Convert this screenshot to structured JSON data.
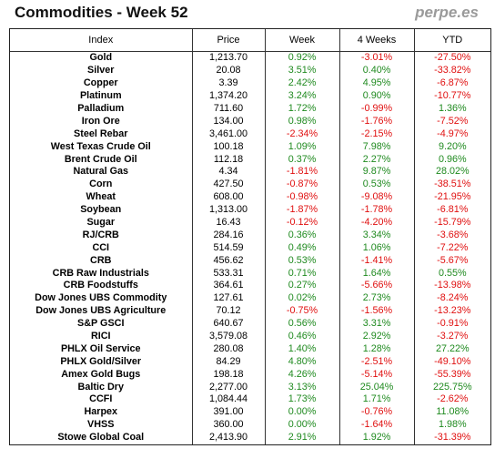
{
  "header": {
    "title": "Commodities - Week 52",
    "source": "perpe.es"
  },
  "colors": {
    "positive": "#1f8a1f",
    "negative": "#e01010"
  },
  "table": {
    "columns": [
      "Index",
      "Price",
      "Week",
      "4 Weeks",
      "YTD"
    ],
    "rows": [
      [
        "Gold",
        "1,213.70",
        "0.92%",
        "-3.01%",
        "-27.50%"
      ],
      [
        "Silver",
        "20.08",
        "3.51%",
        "0.40%",
        "-33.82%"
      ],
      [
        "Copper",
        "3.39",
        "2.42%",
        "4.95%",
        "-6.87%"
      ],
      [
        "Platinum",
        "1,374.20",
        "3.24%",
        "0.90%",
        "-10.77%"
      ],
      [
        "Palladium",
        "711.60",
        "1.72%",
        "-0.99%",
        "1.36%"
      ],
      [
        "Iron Ore",
        "134.00",
        "0.98%",
        "-1.76%",
        "-7.52%"
      ],
      [
        "Steel Rebar",
        "3,461.00",
        "-2.34%",
        "-2.15%",
        "-4.97%"
      ],
      [
        "West Texas Crude Oil",
        "100.18",
        "1.09%",
        "7.98%",
        "9.20%"
      ],
      [
        "Brent Crude Oil",
        "112.18",
        "0.37%",
        "2.27%",
        "0.96%"
      ],
      [
        "Natural Gas",
        "4.34",
        "-1.81%",
        "9.87%",
        "28.02%"
      ],
      [
        "Corn",
        "427.50",
        "-0.87%",
        "0.53%",
        "-38.51%"
      ],
      [
        "Wheat",
        "608.00",
        "-0.98%",
        "-9.08%",
        "-21.95%"
      ],
      [
        "Soybean",
        "1,313.00",
        "-1.87%",
        "-1.78%",
        "-6.81%"
      ],
      [
        "Sugar",
        "16.43",
        "-0.12%",
        "-4.20%",
        "-15.79%"
      ],
      [
        "RJ/CRB",
        "284.16",
        "0.36%",
        "3.34%",
        "-3.68%"
      ],
      [
        "CCI",
        "514.59",
        "0.49%",
        "1.06%",
        "-7.22%"
      ],
      [
        "CRB",
        "456.62",
        "0.53%",
        "-1.41%",
        "-5.67%"
      ],
      [
        "CRB Raw Industrials",
        "533.31",
        "0.71%",
        "1.64%",
        "0.55%"
      ],
      [
        "CRB Foodstuffs",
        "364.61",
        "0.27%",
        "-5.66%",
        "-13.98%"
      ],
      [
        "Dow Jones UBS Commodity",
        "127.61",
        "0.02%",
        "2.73%",
        "-8.24%"
      ],
      [
        "Dow Jones UBS Agriculture",
        "70.12",
        "-0.75%",
        "-1.56%",
        "-13.23%"
      ],
      [
        "S&P GSCI",
        "640.67",
        "0.56%",
        "3.31%",
        "-0.91%"
      ],
      [
        "RICI",
        "3,579.08",
        "0.46%",
        "2.92%",
        "-3.27%"
      ],
      [
        "PHLX Oil Service",
        "280.08",
        "1.40%",
        "1.28%",
        "27.22%"
      ],
      [
        "PHLX Gold/Silver",
        "84.29",
        "4.80%",
        "-2.51%",
        "-49.10%"
      ],
      [
        "Amex Gold Bugs",
        "198.18",
        "4.26%",
        "-5.14%",
        "-55.39%"
      ],
      [
        "Baltic Dry",
        "2,277.00",
        "3.13%",
        "25.04%",
        "225.75%"
      ],
      [
        "CCFI",
        "1,084.44",
        "1.73%",
        "1.71%",
        "-2.62%"
      ],
      [
        "Harpex",
        "391.00",
        "0.00%",
        "-0.76%",
        "11.08%"
      ],
      [
        "VHSS",
        "360.00",
        "0.00%",
        "-1.64%",
        "1.98%"
      ],
      [
        "Stowe Global Coal",
        "2,413.90",
        "2.91%",
        "1.92%",
        "-31.39%"
      ]
    ]
  }
}
